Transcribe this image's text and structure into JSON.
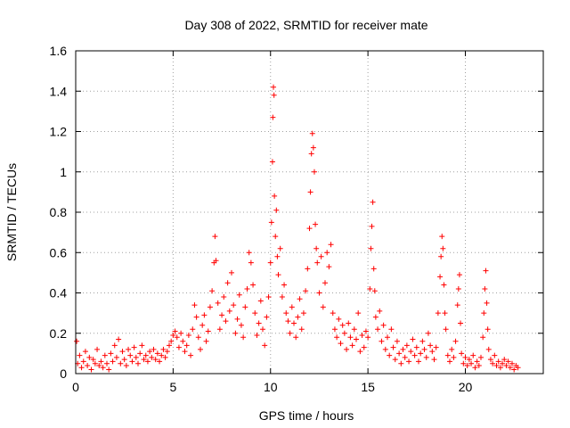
{
  "chart_data": {
    "type": "scatter",
    "title": "Day 308 of 2022, SRMTID for receiver mate",
    "xlabel": "GPS time / hours",
    "ylabel": "SRMTID / TECUs",
    "xlim": [
      0,
      24
    ],
    "ylim": [
      0,
      1.6
    ],
    "x_ticks": [
      0,
      5,
      10,
      15,
      20
    ],
    "x_tick_labels": [
      "0",
      "5",
      "10",
      "15",
      "20"
    ],
    "y_ticks": [
      0,
      0.2,
      0.4,
      0.6,
      0.8,
      1.0,
      1.2,
      1.4,
      1.6
    ],
    "y_tick_labels": [
      "0",
      "0.2",
      "0.4",
      "0.6",
      "0.8",
      "1",
      "1.2",
      "1.4",
      "1.6"
    ],
    "grid": true,
    "marker": "+",
    "series": [
      {
        "name": "SRMTID",
        "color": "#ff0000",
        "points": [
          [
            0.05,
            0.16
          ],
          [
            0.1,
            0.05
          ],
          [
            0.2,
            0.09
          ],
          [
            0.3,
            0.03
          ],
          [
            0.4,
            0.06
          ],
          [
            0.5,
            0.11
          ],
          [
            0.6,
            0.04
          ],
          [
            0.7,
            0.08
          ],
          [
            0.8,
            0.02
          ],
          [
            0.9,
            0.07
          ],
          [
            1.0,
            0.05
          ],
          [
            1.1,
            0.12
          ],
          [
            1.2,
            0.04
          ],
          [
            1.3,
            0.06
          ],
          [
            1.4,
            0.03
          ],
          [
            1.5,
            0.09
          ],
          [
            1.6,
            0.05
          ],
          [
            1.7,
            0.02
          ],
          [
            1.8,
            0.1
          ],
          [
            1.9,
            0.06
          ],
          [
            2.0,
            0.14
          ],
          [
            2.1,
            0.08
          ],
          [
            2.2,
            0.17
          ],
          [
            2.3,
            0.05
          ],
          [
            2.4,
            0.11
          ],
          [
            2.5,
            0.07
          ],
          [
            2.6,
            0.04
          ],
          [
            2.7,
            0.12
          ],
          [
            2.8,
            0.09
          ],
          [
            2.9,
            0.06
          ],
          [
            3.0,
            0.13
          ],
          [
            3.1,
            0.08
          ],
          [
            3.2,
            0.05
          ],
          [
            3.3,
            0.1
          ],
          [
            3.4,
            0.14
          ],
          [
            3.5,
            0.07
          ],
          [
            3.6,
            0.09
          ],
          [
            3.7,
            0.06
          ],
          [
            3.8,
            0.11
          ],
          [
            3.9,
            0.08
          ],
          [
            4.0,
            0.12
          ],
          [
            4.1,
            0.07
          ],
          [
            4.2,
            0.1
          ],
          [
            4.3,
            0.06
          ],
          [
            4.4,
            0.09
          ],
          [
            4.5,
            0.12
          ],
          [
            4.6,
            0.08
          ],
          [
            4.7,
            0.11
          ],
          [
            4.8,
            0.14
          ],
          [
            4.9,
            0.16
          ],
          [
            5.0,
            0.19
          ],
          [
            5.1,
            0.21
          ],
          [
            5.2,
            0.18
          ],
          [
            5.3,
            0.13
          ],
          [
            5.4,
            0.2
          ],
          [
            5.5,
            0.16
          ],
          [
            5.6,
            0.11
          ],
          [
            5.7,
            0.14
          ],
          [
            5.8,
            0.19
          ],
          [
            5.9,
            0.09
          ],
          [
            6.0,
            0.22
          ],
          [
            6.1,
            0.34
          ],
          [
            6.2,
            0.28
          ],
          [
            6.3,
            0.18
          ],
          [
            6.4,
            0.12
          ],
          [
            6.5,
            0.24
          ],
          [
            6.6,
            0.29
          ],
          [
            6.7,
            0.16
          ],
          [
            6.8,
            0.21
          ],
          [
            6.9,
            0.33
          ],
          [
            7.0,
            0.41
          ],
          [
            7.1,
            0.55
          ],
          [
            7.15,
            0.68
          ],
          [
            7.2,
            0.56
          ],
          [
            7.3,
            0.35
          ],
          [
            7.4,
            0.22
          ],
          [
            7.5,
            0.29
          ],
          [
            7.6,
            0.38
          ],
          [
            7.7,
            0.26
          ],
          [
            7.8,
            0.45
          ],
          [
            7.9,
            0.31
          ],
          [
            8.0,
            0.5
          ],
          [
            8.1,
            0.34
          ],
          [
            8.2,
            0.2
          ],
          [
            8.3,
            0.27
          ],
          [
            8.4,
            0.39
          ],
          [
            8.5,
            0.24
          ],
          [
            8.6,
            0.18
          ],
          [
            8.7,
            0.33
          ],
          [
            8.8,
            0.42
          ],
          [
            8.9,
            0.6
          ],
          [
            9.0,
            0.55
          ],
          [
            9.1,
            0.44
          ],
          [
            9.2,
            0.3
          ],
          [
            9.3,
            0.19
          ],
          [
            9.4,
            0.25
          ],
          [
            9.5,
            0.36
          ],
          [
            9.6,
            0.22
          ],
          [
            9.7,
            0.14
          ],
          [
            9.8,
            0.28
          ],
          [
            9.9,
            0.38
          ],
          [
            10.0,
            0.55
          ],
          [
            10.05,
            0.75
          ],
          [
            10.1,
            1.05
          ],
          [
            10.12,
            1.27
          ],
          [
            10.15,
            1.42
          ],
          [
            10.18,
            1.38
          ],
          [
            10.2,
            0.88
          ],
          [
            10.25,
            0.68
          ],
          [
            10.3,
            0.81
          ],
          [
            10.35,
            0.58
          ],
          [
            10.4,
            0.49
          ],
          [
            10.5,
            0.62
          ],
          [
            10.6,
            0.38
          ],
          [
            10.7,
            0.44
          ],
          [
            10.8,
            0.3
          ],
          [
            10.9,
            0.26
          ],
          [
            11.0,
            0.2
          ],
          [
            11.1,
            0.33
          ],
          [
            11.2,
            0.25
          ],
          [
            11.3,
            0.18
          ],
          [
            11.4,
            0.28
          ],
          [
            11.5,
            0.37
          ],
          [
            11.6,
            0.22
          ],
          [
            11.7,
            0.3
          ],
          [
            11.8,
            0.41
          ],
          [
            11.9,
            0.52
          ],
          [
            12.0,
            0.72
          ],
          [
            12.05,
            0.9
          ],
          [
            12.1,
            1.09
          ],
          [
            12.15,
            1.19
          ],
          [
            12.2,
            1.12
          ],
          [
            12.25,
            1.0
          ],
          [
            12.3,
            0.74
          ],
          [
            12.35,
            0.62
          ],
          [
            12.4,
            0.55
          ],
          [
            12.5,
            0.4
          ],
          [
            12.6,
            0.58
          ],
          [
            12.7,
            0.33
          ],
          [
            12.8,
            0.45
          ],
          [
            12.9,
            0.6
          ],
          [
            13.0,
            0.53
          ],
          [
            13.1,
            0.64
          ],
          [
            13.2,
            0.3
          ],
          [
            13.3,
            0.22
          ],
          [
            13.4,
            0.18
          ],
          [
            13.5,
            0.27
          ],
          [
            13.6,
            0.15
          ],
          [
            13.7,
            0.24
          ],
          [
            13.8,
            0.2
          ],
          [
            13.9,
            0.12
          ],
          [
            14.0,
            0.25
          ],
          [
            14.1,
            0.18
          ],
          [
            14.2,
            0.14
          ],
          [
            14.3,
            0.22
          ],
          [
            14.4,
            0.17
          ],
          [
            14.5,
            0.3
          ],
          [
            14.6,
            0.11
          ],
          [
            14.7,
            0.19
          ],
          [
            14.8,
            0.13
          ],
          [
            14.9,
            0.21
          ],
          [
            15.0,
            0.18
          ],
          [
            15.1,
            0.42
          ],
          [
            15.15,
            0.62
          ],
          [
            15.2,
            0.73
          ],
          [
            15.25,
            0.85
          ],
          [
            15.3,
            0.52
          ],
          [
            15.35,
            0.41
          ],
          [
            15.4,
            0.28
          ],
          [
            15.5,
            0.22
          ],
          [
            15.6,
            0.31
          ],
          [
            15.7,
            0.16
          ],
          [
            15.8,
            0.24
          ],
          [
            15.9,
            0.12
          ],
          [
            16.0,
            0.18
          ],
          [
            16.1,
            0.09
          ],
          [
            16.2,
            0.22
          ],
          [
            16.3,
            0.13
          ],
          [
            16.4,
            0.07
          ],
          [
            16.5,
            0.16
          ],
          [
            16.6,
            0.1
          ],
          [
            16.7,
            0.05
          ],
          [
            16.8,
            0.12
          ],
          [
            16.9,
            0.08
          ],
          [
            17.0,
            0.14
          ],
          [
            17.1,
            0.06
          ],
          [
            17.2,
            0.11
          ],
          [
            17.3,
            0.17
          ],
          [
            17.4,
            0.09
          ],
          [
            17.5,
            0.13
          ],
          [
            17.6,
            0.06
          ],
          [
            17.7,
            0.1
          ],
          [
            17.8,
            0.16
          ],
          [
            17.9,
            0.12
          ],
          [
            18.0,
            0.08
          ],
          [
            18.1,
            0.2
          ],
          [
            18.2,
            0.14
          ],
          [
            18.3,
            0.11
          ],
          [
            18.4,
            0.07
          ],
          [
            18.5,
            0.13
          ],
          [
            18.6,
            0.3
          ],
          [
            18.7,
            0.48
          ],
          [
            18.75,
            0.58
          ],
          [
            18.8,
            0.68
          ],
          [
            18.85,
            0.62
          ],
          [
            18.9,
            0.44
          ],
          [
            18.95,
            0.3
          ],
          [
            19.0,
            0.22
          ],
          [
            19.1,
            0.09
          ],
          [
            19.2,
            0.06
          ],
          [
            19.3,
            0.12
          ],
          [
            19.4,
            0.08
          ],
          [
            19.5,
            0.16
          ],
          [
            19.6,
            0.34
          ],
          [
            19.65,
            0.42
          ],
          [
            19.7,
            0.49
          ],
          [
            19.75,
            0.25
          ],
          [
            19.8,
            0.1
          ],
          [
            19.9,
            0.05
          ],
          [
            20.0,
            0.08
          ],
          [
            20.1,
            0.04
          ],
          [
            20.2,
            0.07
          ],
          [
            20.3,
            0.05
          ],
          [
            20.4,
            0.09
          ],
          [
            20.5,
            0.03
          ],
          [
            20.6,
            0.06
          ],
          [
            20.7,
            0.04
          ],
          [
            20.8,
            0.08
          ],
          [
            20.9,
            0.18
          ],
          [
            20.95,
            0.3
          ],
          [
            21.0,
            0.42
          ],
          [
            21.05,
            0.51
          ],
          [
            21.1,
            0.35
          ],
          [
            21.15,
            0.22
          ],
          [
            21.2,
            0.12
          ],
          [
            21.3,
            0.07
          ],
          [
            21.4,
            0.05
          ],
          [
            21.5,
            0.09
          ],
          [
            21.6,
            0.04
          ],
          [
            21.7,
            0.06
          ],
          [
            21.8,
            0.03
          ],
          [
            21.9,
            0.05
          ],
          [
            22.0,
            0.07
          ],
          [
            22.1,
            0.04
          ],
          [
            22.2,
            0.06
          ],
          [
            22.3,
            0.03
          ],
          [
            22.4,
            0.05
          ],
          [
            22.5,
            0.02
          ],
          [
            22.6,
            0.04
          ],
          [
            22.7,
            0.03
          ]
        ]
      }
    ]
  }
}
